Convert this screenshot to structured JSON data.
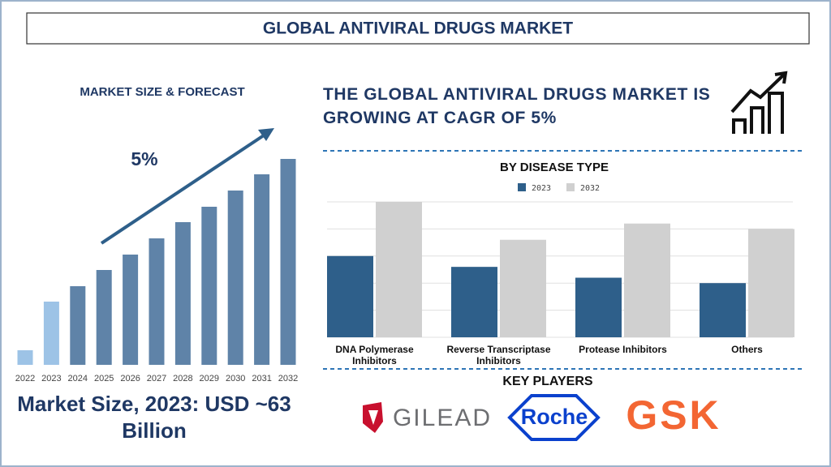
{
  "header": {
    "title": "GLOBAL ANTIVIRAL DRUGS MARKET"
  },
  "chart_data": [
    {
      "type": "bar",
      "title": "MARKET SIZE & FORECAST",
      "growth_label": "5%",
      "categories": [
        "2022",
        "2023",
        "2024",
        "2025",
        "2026",
        "2027",
        "2028",
        "2029",
        "2030",
        "2031",
        "2032"
      ],
      "values": [
        18,
        78,
        97,
        117,
        136,
        156,
        176,
        195,
        215,
        235,
        254
      ],
      "colors": [
        "#9dc3e6",
        "#9dc3e6",
        "#5f83a8",
        "#5f83a8",
        "#5f83a8",
        "#5f83a8",
        "#5f83a8",
        "#5f83a8",
        "#5f83a8",
        "#5f83a8",
        "#5f83a8"
      ]
    },
    {
      "type": "grouped-bar",
      "title": "BY DISEASE TYPE",
      "categories": [
        "DNA Polymerase Inhibitors",
        "Reverse Transcriptase Inhibitors",
        "Protease Inhibitors",
        "Others"
      ],
      "series": [
        {
          "name": "2023",
          "color": "#2e5f8a",
          "values": [
            3.0,
            2.6,
            2.2,
            2.0
          ]
        },
        {
          "name": "2032",
          "color": "#d0d0d0",
          "values": [
            5.0,
            3.6,
            4.2,
            4.0
          ]
        }
      ],
      "ylim": [
        0,
        5
      ],
      "yticks": [
        0,
        1,
        2,
        3,
        4,
        5
      ],
      "grid": true,
      "tick_labels": false
    }
  ],
  "market_size": "Market Size, 2023: USD ~63 Billion",
  "headline": "THE GLOBAL ANTIVIRAL DRUGS MARKET IS GROWING AT CAGR OF 5%",
  "key_players": {
    "title": "KEY PLAYERS",
    "logos": [
      "GILEAD",
      "Roche",
      "GSK"
    ]
  }
}
